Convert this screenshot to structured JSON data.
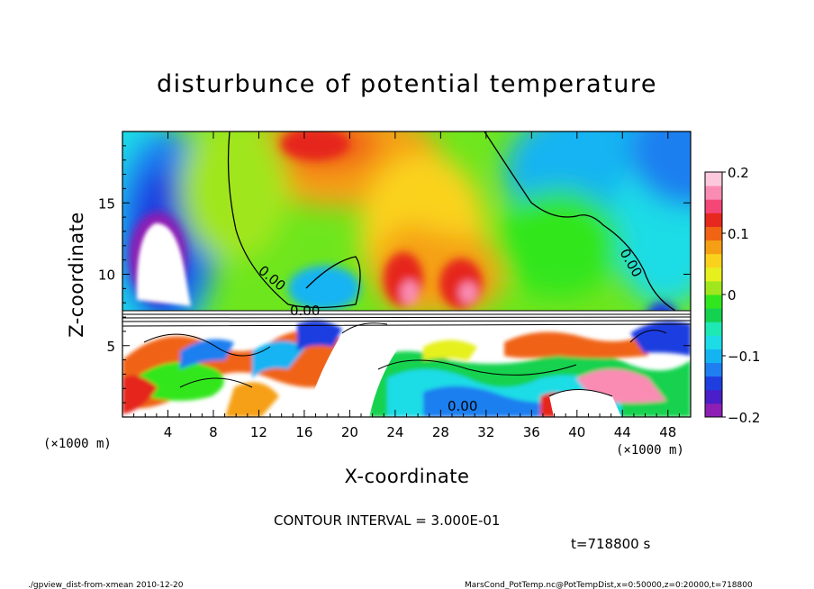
{
  "chart_data": {
    "type": "heatmap",
    "title": "disturbunce of potential temperature",
    "xlabel": "X-coordinate",
    "ylabel": "Z-coordinate",
    "x_unit_label": "(×1000 m)",
    "y_unit_label": "(×1000 m)",
    "xlim": [
      0,
      50
    ],
    "ylim": [
      0,
      20
    ],
    "x_ticks": [
      "4",
      "8",
      "12",
      "16",
      "20",
      "24",
      "28",
      "32",
      "36",
      "40",
      "44",
      "48"
    ],
    "x_tick_values": [
      4,
      8,
      12,
      16,
      20,
      24,
      28,
      32,
      36,
      40,
      44,
      48
    ],
    "y_ticks": [
      "5",
      "10",
      "15"
    ],
    "y_tick_values": [
      5,
      10,
      15
    ],
    "colorbar": {
      "min": -0.2,
      "max": 0.2,
      "ticks": [
        "0.2",
        "0.1",
        "0",
        "−0.1",
        "−0.2"
      ],
      "tick_values": [
        0.2,
        0.1,
        0,
        -0.1,
        -0.2
      ],
      "colors": [
        "#8e1fb4",
        "#4a1ec8",
        "#1f3ee0",
        "#1f7ff0",
        "#14b4f2",
        "#1edce6",
        "#1ee8b4",
        "#14d250",
        "#32e61e",
        "#a0e61e",
        "#e6f01e",
        "#fad21e",
        "#f5a014",
        "#f06414",
        "#e6281e",
        "#f54678",
        "#fa8cb4",
        "#fcc8dc"
      ]
    },
    "contour_label": "0.00",
    "contour_interval_text": "CONTOUR INTERVAL = 3.000E-01",
    "time_text": "t=718800 s"
  },
  "footer": {
    "left": "./gpview_dist-from-xmean  2010-12-20",
    "right": "MarsCond_PotTemp.nc@PotTempDist,x=0:50000,z=0:20000,t=718800"
  }
}
